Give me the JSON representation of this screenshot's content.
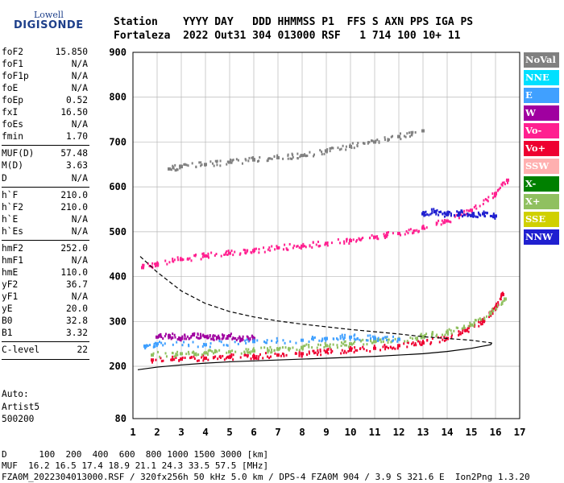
{
  "logo": {
    "line1": "Lowell",
    "line2": "DIGISONDE"
  },
  "header": {
    "line1": "Station    YYYY DAY   DDD HHMMSS P1  FFS S AXN PPS IGA PS",
    "line2": "Fortaleza  2022 Out31 304 013000 RSF   1 714 100 10+ 11"
  },
  "params": [
    {
      "name": "foF2",
      "value": "15.850"
    },
    {
      "name": "foF1",
      "value": "N/A"
    },
    {
      "name": "foF1p",
      "value": "N/A"
    },
    {
      "name": "foE",
      "value": "N/A"
    },
    {
      "name": "foEp",
      "value": "0.52"
    },
    {
      "name": "fxI",
      "value": "16.50"
    },
    {
      "name": "foEs",
      "value": "N/A"
    },
    {
      "name": "fmin",
      "value": "1.70"
    },
    {
      "name": "MUF(D)",
      "value": "57.48"
    },
    {
      "name": "M(D)",
      "value": "3.63"
    },
    {
      "name": "D",
      "value": "N/A"
    },
    {
      "name": "h`F",
      "value": "210.0"
    },
    {
      "name": "h`F2",
      "value": "210.0"
    },
    {
      "name": "h`E",
      "value": "N/A"
    },
    {
      "name": "h`Es",
      "value": "N/A"
    },
    {
      "name": "hmF2",
      "value": "252.0"
    },
    {
      "name": "hmF1",
      "value": "N/A"
    },
    {
      "name": "hmE",
      "value": "110.0"
    },
    {
      "name": "yF2",
      "value": "36.7"
    },
    {
      "name": "yF1",
      "value": "N/A"
    },
    {
      "name": "yE",
      "value": "20.0"
    },
    {
      "name": "B0",
      "value": "32.8"
    },
    {
      "name": "B1",
      "value": "3.32"
    },
    {
      "name": "C-level",
      "value": "22"
    }
  ],
  "auto": {
    "line1": "Auto:",
    "line2": "Artist5",
    "line3": "500200"
  },
  "legend": [
    {
      "label": "NoVal",
      "color": "#808080"
    },
    {
      "label": "NNE",
      "color": "#00e0ff"
    },
    {
      "label": "E",
      "color": "#40a0ff"
    },
    {
      "label": "W",
      "color": "#a000a0"
    },
    {
      "label": "Vo-",
      "color": "#ff2090"
    },
    {
      "label": "Vo+",
      "color": "#ee0030"
    },
    {
      "label": "SSW",
      "color": "#ffb0b0"
    },
    {
      "label": "X-",
      "color": "#008000"
    },
    {
      "label": "X+",
      "color": "#90c060"
    },
    {
      "label": "SSE",
      "color": "#d0d000"
    },
    {
      "label": "NNW",
      "color": "#2020d0"
    }
  ],
  "footer": {
    "line1": "D      100  200  400  600  800 1000 1500 3000 [km]",
    "line2": "MUF  16.2 16.5 17.4 18.9 21.1 24.3 33.5 57.5 [MHz]",
    "line3": "FZA0M_2022304013000.RSF / 320fx256h 50 kHz 5.0 km / DPS-4 FZA0M 904 / 3.9 S 321.6 E  Ion2Png 1.3.20"
  },
  "chart_data": {
    "type": "scatter",
    "x_ticks": [
      "1",
      "2",
      "3",
      "4",
      "5",
      "6",
      "7",
      "8",
      "9",
      "10",
      "11",
      "12",
      "13",
      "14",
      "15",
      "16",
      "17"
    ],
    "y_ticks": [
      "80",
      "200",
      "300",
      "400",
      "500",
      "600",
      "700",
      "800",
      "900"
    ],
    "xlim": [
      1,
      17
    ],
    "ylim": [
      80,
      900
    ],
    "grid": true,
    "legend_position": "right",
    "series": [
      {
        "name": "Vo+",
        "color": "#ee0030",
        "x": [
          1.8,
          3,
          4,
          5,
          6,
          7,
          8,
          9,
          10,
          11,
          12,
          13,
          14,
          14.8,
          15.5,
          16,
          16.3
        ],
        "y": [
          214,
          216,
          218,
          220,
          222,
          225,
          228,
          232,
          236,
          240,
          246,
          252,
          262,
          280,
          300,
          330,
          360
        ]
      },
      {
        "name": "X+",
        "color": "#90c060",
        "x": [
          1.8,
          3,
          4,
          5,
          6,
          7,
          8,
          9,
          10,
          11,
          12,
          13,
          14,
          15,
          15.8,
          16.4
        ],
        "y": [
          225,
          228,
          230,
          232,
          234,
          238,
          242,
          246,
          250,
          255,
          260,
          266,
          276,
          292,
          318,
          350
        ]
      },
      {
        "name": "Vo-",
        "color": "#ff2090",
        "x": [
          1.4,
          2,
          3,
          4,
          5,
          6,
          7,
          8,
          9,
          10,
          11,
          12,
          13,
          14,
          15,
          16,
          16.5
        ],
        "y": [
          420,
          428,
          438,
          446,
          452,
          458,
          464,
          468,
          474,
          480,
          488,
          496,
          508,
          524,
          548,
          585,
          615
        ]
      },
      {
        "name": "NNW",
        "color": "#2020d0",
        "x": [
          13,
          13.5,
          14,
          14.5,
          15,
          15.5,
          16
        ],
        "y": [
          540,
          545,
          538,
          542,
          536,
          540,
          535
        ]
      },
      {
        "name": "W",
        "color": "#a000a0",
        "x": [
          2,
          2.5,
          3,
          3.5,
          4,
          4.5,
          5,
          5.5,
          6
        ],
        "y": [
          265,
          268,
          262,
          270,
          266,
          264,
          268,
          260,
          262
        ]
      },
      {
        "name": "E",
        "color": "#40a0ff",
        "x": [
          1.5,
          2,
          4,
          6,
          8,
          9,
          10,
          11,
          12
        ],
        "y": [
          245,
          250,
          248,
          255,
          258,
          262,
          265,
          262,
          260
        ]
      },
      {
        "name": "NoVal",
        "color": "#808080",
        "x": [
          2.5,
          3,
          4,
          5,
          6,
          7,
          8,
          9,
          10,
          11,
          12,
          13
        ],
        "y": [
          640,
          645,
          650,
          655,
          660,
          665,
          670,
          680,
          690,
          700,
          712,
          725
        ]
      }
    ],
    "lines": [
      {
        "name": "dashed-profile",
        "x": [
          1.3,
          2,
          3,
          4,
          5,
          6,
          7,
          8,
          9,
          10,
          11,
          12,
          13,
          14,
          15,
          15.85
        ],
        "y": [
          445,
          410,
          368,
          340,
          322,
          310,
          301,
          294,
          288,
          282,
          277,
          272,
          266,
          262,
          258,
          252
        ]
      },
      {
        "name": "solid-profile",
        "x": [
          1.2,
          2,
          3,
          4,
          5,
          6,
          7,
          8,
          9,
          10,
          11,
          12,
          13,
          14,
          15,
          15.8,
          15.85
        ],
        "y": [
          192,
          198,
          203,
          207,
          210,
          212,
          214,
          216,
          218,
          220,
          222,
          225,
          228,
          233,
          240,
          248,
          252
        ]
      }
    ]
  }
}
